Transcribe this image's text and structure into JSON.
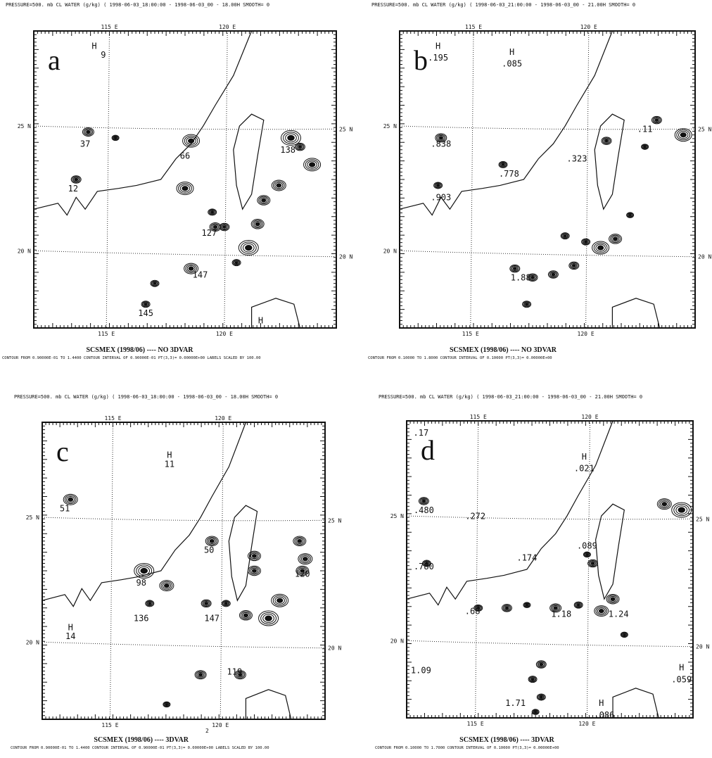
{
  "grid_labels": {
    "lon": [
      "115 E",
      "120 E"
    ],
    "lat": [
      "25 N",
      "20 N"
    ]
  },
  "page_number": "2",
  "panels": [
    {
      "header": "PRESSURE=500. mb  CL WATER (g/kg)   ( 1998-06-03_18:00:00 - 1998-06-03_00 - 18.00H  SMOOTH= 0",
      "letter": "a",
      "labels": [
        "H",
        "9",
        "37",
        "66",
        "138",
        "12",
        "127",
        "147",
        "145",
        "H"
      ],
      "footer_title": "SCSMEX (1998/06) ---- NO 3DVAR",
      "footer_line": "CONTOUR FROM 0.90000E-01 TO 1.4400   CONTOUR INTERVAL OF 0.90000E-01 PT(3,3)= 0.00000E+00 LABELS SCALED BY 100.00"
    },
    {
      "header": "PRESSURE=500. mb  CL WATER (g/kg)   ( 1998-06-03_21:00:00 - 1998-06-03_00 - 21.00H  SMOOTH= 0",
      "letter": "b",
      "labels": [
        "H",
        ".195",
        "H",
        ".085",
        ".838",
        ".778",
        ".323",
        ".11",
        ".903",
        "1.88"
      ],
      "footer_title": "SCSMEX (1998/06) ---- NO 3DVAR",
      "footer_line": "CONTOUR FROM 0.10000 TO 1.8000   CONTOUR INTERVAL OF 0.10000   PT(3,3)= 0.00000E+00"
    },
    {
      "header": "PRESSURE=500. mb  CL WATER (g/kg)   ( 1998-06-03_18:00:00 - 1998-06-03_00 - 18.00H  SMOOTH= 0",
      "letter": "c",
      "labels": [
        "H",
        "11",
        "51",
        "98",
        "50",
        "120",
        "136",
        "147",
        "H",
        "14",
        "119"
      ],
      "footer_title": "SCSMEX (1998/06) ---- 3DVAR",
      "footer_line": "CONTOUR FROM 0.90000E-01 TO 1.4400   CONTOUR INTERVAL OF 0.90000E-01 PT(3,3)= 0.00000E+00 LABELS SCALED BY 100.00"
    },
    {
      "header": "PRESSURE=500. mb  CL WATER (g/kg)   ( 1998-06-03_21:00:00 - 1998-06-03_00 - 21.00H  SMOOTH= 0",
      "letter": "d",
      "labels": [
        ".17",
        "H",
        ".021",
        ".480",
        ".272",
        ".174",
        ".089",
        ".780",
        ".68",
        "1.18",
        "1.24",
        "1.09",
        "H",
        ".059",
        "1.71",
        "H",
        ".086"
      ],
      "footer_title": "SCSMEX (1998/06) ---- 3DVAR",
      "footer_line": "CONTOUR FROM 0.10000 TO 1.7000   CONTOUR INTERVAL OF 0.10000   PT(3,3)= 0.00000E+00"
    }
  ]
}
